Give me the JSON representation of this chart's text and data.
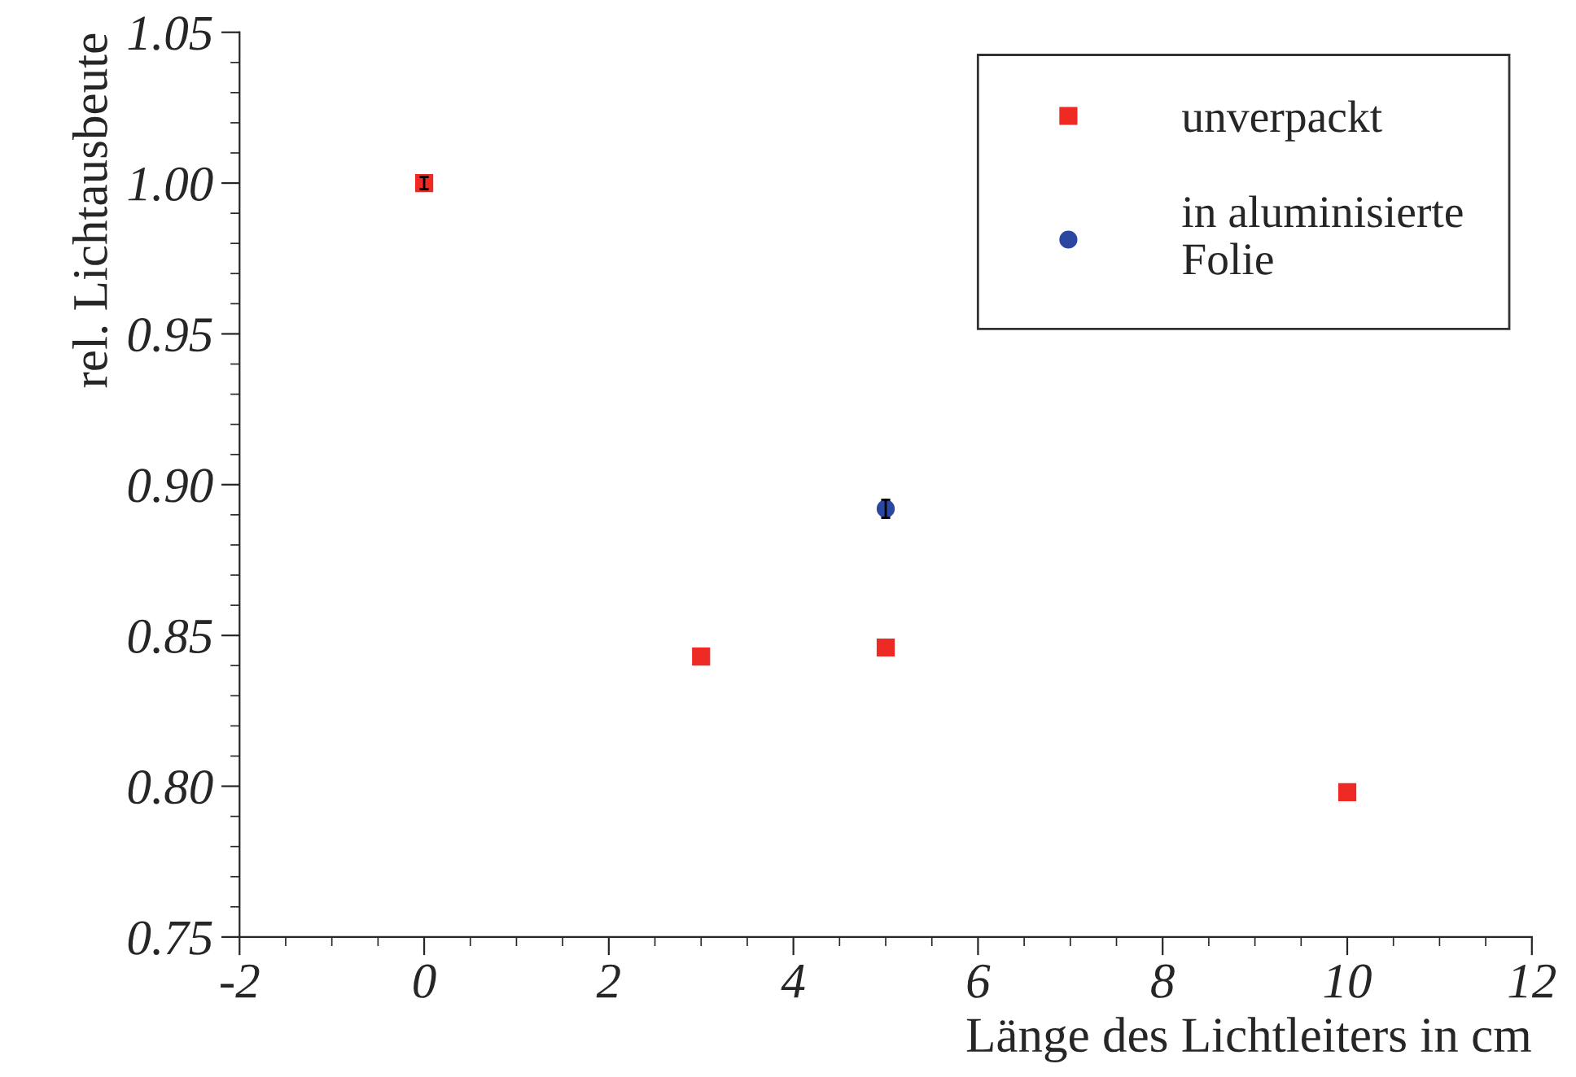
{
  "chart_data": {
    "type": "scatter",
    "xlabel": "Länge des Lichtleiters in cm",
    "ylabel": "rel. Lichtausbeute",
    "xlim": [
      -2,
      12
    ],
    "xticks": [
      -2,
      0,
      2,
      4,
      6,
      8,
      10,
      12
    ],
    "ylim": [
      0.75,
      1.05
    ],
    "yticks": [
      {
        "value": 0.75,
        "label": "0.75"
      },
      {
        "value": 0.8,
        "label": "0.80"
      },
      {
        "value": 0.85,
        "label": "0.85"
      },
      {
        "value": 0.9,
        "label": "0.90"
      },
      {
        "value": 0.95,
        "label": "0.95"
      },
      {
        "value": 1.0,
        "label": "1.00"
      },
      {
        "value": 1.05,
        "label": "1.05"
      }
    ],
    "grid": false,
    "legend": "top right",
    "series": [
      {
        "name": "unverpackt",
        "color": "#ee2a24",
        "marker": "square",
        "x": [
          0,
          3,
          5,
          10
        ],
        "values": [
          1.0,
          0.843,
          0.846,
          0.798
        ],
        "errors": [
          0.002,
          null,
          null,
          null
        ]
      },
      {
        "name": "in aluminisierte\nFolie",
        "color": "#2b47a0",
        "marker": "circle",
        "x": [
          5
        ],
        "values": [
          0.892
        ],
        "errors": [
          0.003
        ]
      }
    ]
  }
}
